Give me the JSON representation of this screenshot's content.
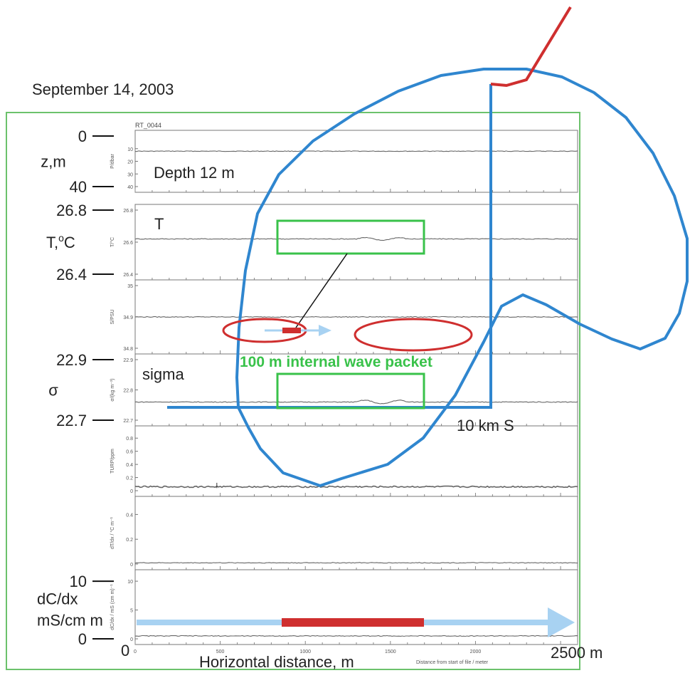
{
  "date": "September 14, 2003",
  "file_label": "RT_0044",
  "annotations": {
    "depth": "Depth 12 m",
    "temp_letter": "T",
    "sigma_word": "sigma",
    "packet": "100 m internal wave packet",
    "track_distance": "10 km S",
    "end_distance": "2500 m",
    "x_label": "Horizontal distance, m"
  },
  "colors": {
    "frame": "#6cc26c",
    "track": "#2f86cf",
    "marker": "#cf2f2f",
    "arrow": "#a8d2f2",
    "trace": "#666666",
    "box": "#39c24a"
  },
  "chart_data": {
    "type": "line",
    "title": "RT_0044",
    "xlabel": "Distance from start of file / meter",
    "xlim": [
      0,
      2600
    ],
    "x_ticks": [
      "0",
      "500",
      "1000",
      "1500",
      "2000",
      "2500"
    ],
    "panels": [
      {
        "ylabel": "P/dbar",
        "ylim": [
          40,
          0
        ],
        "ticks": [
          "10",
          "20",
          "30",
          "40"
        ],
        "outer_ticks": [
          "0",
          "40"
        ],
        "outer_label": [
          "z,m"
        ],
        "value": 12
      },
      {
        "ylabel": "T/°C",
        "ylim": [
          26.4,
          26.8
        ],
        "ticks": [
          "26.8",
          "26.6",
          "26.4"
        ],
        "outer_ticks": [
          "26.8",
          "26.4"
        ],
        "outer_label": [
          "T,",
          "o",
          "C"
        ],
        "value": 26.62
      },
      {
        "ylabel": "S/PSU",
        "ylim": [
          34.8,
          35
        ],
        "ticks": [
          "35",
          "34.9",
          "34.8"
        ],
        "outer_ticks": [],
        "outer_label": [],
        "value": 34.9
      },
      {
        "ylabel": "σ/(kg m⁻³)",
        "ylim": [
          22.7,
          22.9
        ],
        "ticks": [
          "22.9",
          "22.8",
          "22.7"
        ],
        "outer_ticks": [
          "22.9",
          "22.7"
        ],
        "outer_label": [
          "σ"
        ],
        "value": 22.76
      },
      {
        "ylabel": "TURP/ppm",
        "ylim": [
          0,
          0.9
        ],
        "ticks": [
          "0.8",
          "0.6",
          "0.4",
          "0.2",
          "0"
        ],
        "outer_ticks": [],
        "outer_label": [],
        "value": 0.06
      },
      {
        "ylabel": "dT/dx / °C m⁻¹",
        "ylim": [
          0,
          0.5
        ],
        "ticks": [
          "0.4",
          "0.2",
          "0"
        ],
        "outer_ticks": [],
        "outer_label": [],
        "value": 0.01
      },
      {
        "ylabel": "dC/dx / mS (cm m)⁻¹",
        "ylim": [
          0,
          11
        ],
        "ticks": [
          "10",
          "5",
          "0"
        ],
        "outer_ticks": [
          "10",
          "0"
        ],
        "outer_label": [
          "dC/dx",
          "mS/cm m"
        ],
        "value": 0.5
      }
    ]
  }
}
